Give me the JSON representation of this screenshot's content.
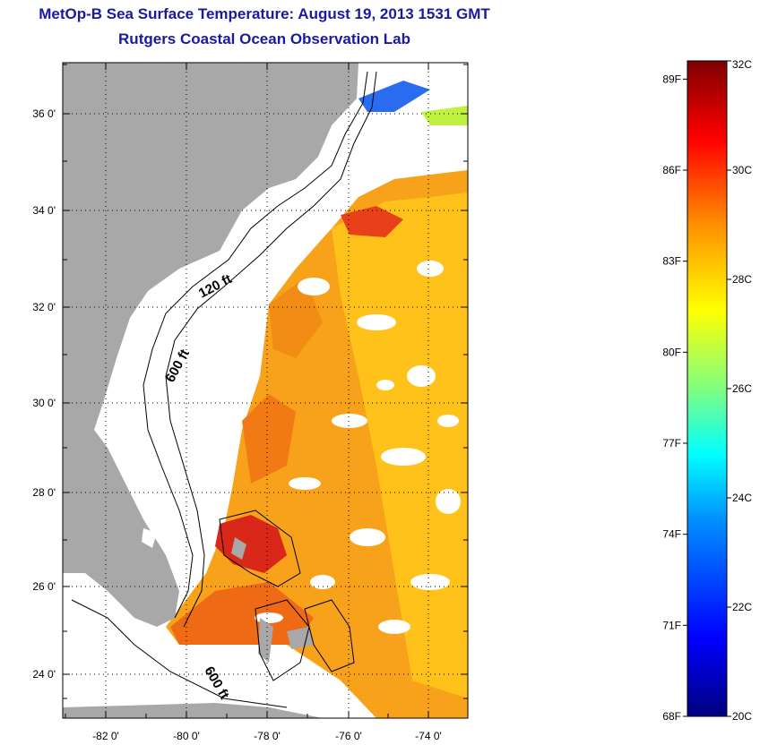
{
  "title": {
    "line1": "MetOp-B Sea Surface Temperature:  August 19, 2013 1531 GMT",
    "line2": "Rutgers Coastal Ocean Observation Lab"
  },
  "map": {
    "lat_labels": [
      "36 0'",
      "34 0'",
      "32 0'",
      "30 0'",
      "28 0'",
      "26 0'",
      "24 0'"
    ],
    "lat_values": [
      36,
      34,
      32,
      30,
      28,
      26,
      24
    ],
    "lon_labels": [
      "-82 0'",
      "-80 0'",
      "-78 0'",
      "-76 0'",
      "-74 0'"
    ],
    "lon_values": [
      -82,
      -80,
      -78,
      -76,
      -74
    ],
    "lat_range": [
      23,
      37
    ],
    "lon_range": [
      -83,
      -73
    ],
    "contour_labels": {
      "c120_north": "120 ft",
      "c600_north": "600 ft",
      "c600_south": "600 ft"
    },
    "land_color": "#a8a8a8",
    "ocean_missing_color": "#ffffff"
  },
  "colorbar": {
    "fahrenheit_labels": [
      "89F",
      "86F",
      "83F",
      "80F",
      "77F",
      "74F",
      "71F",
      "68F"
    ],
    "celsius_labels": [
      "32C",
      "30C",
      "28C",
      "26C",
      "24C",
      "22C",
      "20C"
    ],
    "celsius_range": [
      20,
      32
    ],
    "colors": [
      "#00007f",
      "#0000ff",
      "#0080ff",
      "#00ffff",
      "#80ff80",
      "#ffff00",
      "#ff8000",
      "#ff0000",
      "#7f0000"
    ]
  }
}
